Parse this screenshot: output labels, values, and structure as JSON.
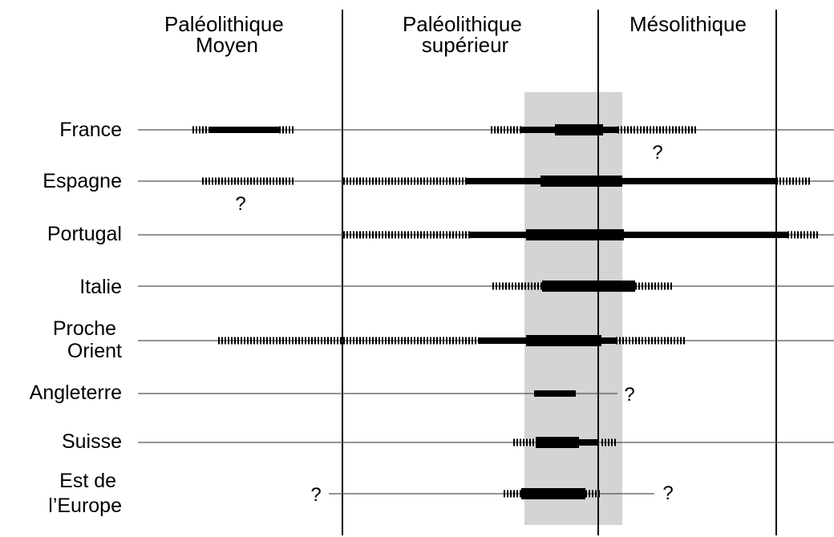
{
  "periods": [
    {
      "id": "paleolithique-moyen",
      "lines": [
        "Paléolithique",
        "Moyen"
      ]
    },
    {
      "id": "paleolithique-superieur",
      "lines": [
        "Paléolithique",
        "supérieur"
      ]
    },
    {
      "id": "mesolithique",
      "lines": [
        "Mésolithique"
      ]
    }
  ],
  "regions": [
    {
      "id": "france",
      "lines": [
        "France"
      ]
    },
    {
      "id": "espagne",
      "lines": [
        "Espagne"
      ]
    },
    {
      "id": "portugal",
      "lines": [
        "Portugal"
      ]
    },
    {
      "id": "italie",
      "lines": [
        "Italie"
      ]
    },
    {
      "id": "proche-orient",
      "lines": [
        "Proche",
        "Orient"
      ]
    },
    {
      "id": "angleterre",
      "lines": [
        "Angleterre"
      ]
    },
    {
      "id": "suisse",
      "lines": [
        "Suisse"
      ]
    },
    {
      "id": "est-europe",
      "lines": [
        "Est de",
        "l’Europe"
      ]
    }
  ],
  "question_mark": "?",
  "colors": {
    "line": "#000000",
    "thin_line": "#555555",
    "highlight_band": "#d4d4d4"
  }
}
